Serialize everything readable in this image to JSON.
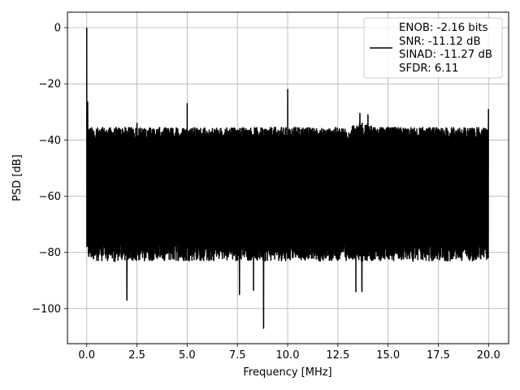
{
  "chart_data": {
    "type": "line",
    "title": "",
    "xlabel": "Frequency [MHz]",
    "ylabel": "PSD [dB]",
    "xlim": [
      -0.96,
      21.0
    ],
    "ylim": [
      -112.5,
      5.5
    ],
    "xticks": [
      0.0,
      2.5,
      5.0,
      7.5,
      10.0,
      12.5,
      15.0,
      17.5,
      20.0
    ],
    "xtick_labels": [
      "0.0",
      "2.5",
      "5.0",
      "7.5",
      "10.0",
      "12.5",
      "15.0",
      "17.5",
      "20.0"
    ],
    "yticks": [
      0,
      -20,
      -40,
      -60,
      -80,
      -100
    ],
    "ytick_labels": [
      "0",
      "−20",
      "−40",
      "−60",
      "−80",
      "−100"
    ],
    "grid": true,
    "legend_position": "top-right",
    "series": [
      {
        "name": "ENOB: -2.16 bits\nSNR: -11.12 dB\nSINAD: -11.27 dB\nSFDR: 6.11",
        "color": "#000000",
        "noise_floor_top_db": -38,
        "noise_floor_bottom_db": -80,
        "spikes": [
          {
            "x": 0.0,
            "y": 0.0
          },
          {
            "x": 0.05,
            "y": -26.5
          },
          {
            "x": 2.5,
            "y": -34.0
          },
          {
            "x": 5.0,
            "y": -27.0
          },
          {
            "x": 10.0,
            "y": -22.0
          },
          {
            "x": 13.6,
            "y": -30.5
          },
          {
            "x": 14.0,
            "y": -31.0
          },
          {
            "x": 20.0,
            "y": -29.0
          }
        ],
        "deep_dips": [
          {
            "x": 2.0,
            "y": -97.0
          },
          {
            "x": 7.6,
            "y": -95.0
          },
          {
            "x": 8.3,
            "y": -93.5
          },
          {
            "x": 8.8,
            "y": -107.0
          },
          {
            "x": 13.4,
            "y": -94.0
          },
          {
            "x": 13.7,
            "y": -94.0
          }
        ]
      }
    ],
    "legend_lines": [
      "ENOB: -2.16 bits",
      "SNR: -11.12 dB",
      "SINAD: -11.27 dB",
      "SFDR: 6.11"
    ]
  }
}
